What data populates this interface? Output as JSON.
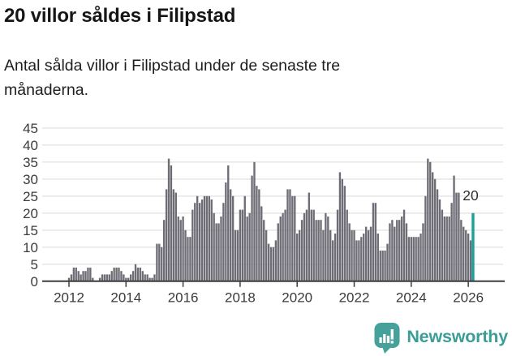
{
  "title": "20 villor såldes i Filipstad",
  "subtitle": "Antal sålda villor i Filipstad under de senaste tre månaderna.",
  "footer": {
    "brand": "Newsworthy",
    "logo_icon": "bar-chart-speech-bubble-icon"
  },
  "colors": {
    "bar": "#6e6d76",
    "highlight": "#1d9f9a",
    "grid": "#e8e8e8",
    "axis": "#3d3d3d",
    "tick_text": "#3b3b3b",
    "annotation_text": "#2e2e2e",
    "brand": "#3b9d96",
    "logo_fill": "#46a19a"
  },
  "chart_data": {
    "type": "bar",
    "title": "20 villor såldes i Filipstad",
    "ylabel": "",
    "xlabel": "",
    "ylim": [
      0,
      45
    ],
    "grid": true,
    "y_ticks": [
      0,
      5,
      10,
      15,
      20,
      25,
      30,
      35,
      40,
      45
    ],
    "x_tick_labels": [
      "2012",
      "2014",
      "2016",
      "2018",
      "2020",
      "2022",
      "2024",
      "2026"
    ],
    "x_start_month": "2012-01",
    "series": [
      {
        "year": 2012,
        "monthly": [
          1,
          2,
          4,
          4,
          3,
          2,
          3,
          3,
          4,
          4,
          1,
          0
        ]
      },
      {
        "year": 2013,
        "monthly": [
          0,
          1,
          2,
          2,
          2,
          2,
          3,
          4,
          4,
          4,
          3,
          2
        ]
      },
      {
        "year": 2014,
        "monthly": [
          1,
          1,
          2,
          3,
          5,
          4,
          4,
          3,
          2,
          2,
          1,
          1
        ]
      },
      {
        "year": 2015,
        "monthly": [
          2,
          11,
          11,
          10,
          18,
          27,
          36,
          34,
          27,
          26,
          19,
          18
        ]
      },
      {
        "year": 2016,
        "monthly": [
          19,
          15,
          13,
          13,
          21,
          23,
          25,
          23,
          24,
          25,
          25,
          25
        ]
      },
      {
        "year": 2017,
        "monthly": [
          24,
          20,
          17,
          17,
          19,
          23,
          29,
          34,
          27,
          25,
          15,
          15
        ]
      },
      {
        "year": 2018,
        "monthly": [
          21,
          21,
          25,
          19,
          20,
          31,
          35,
          28,
          27,
          22,
          18,
          15
        ]
      },
      {
        "year": 2019,
        "monthly": [
          11,
          10,
          10,
          12,
          17,
          19,
          20,
          21,
          27,
          27,
          25,
          25
        ]
      },
      {
        "year": 2020,
        "monthly": [
          14,
          15,
          18,
          20,
          21,
          26,
          21,
          21,
          18,
          18,
          18,
          15
        ]
      },
      {
        "year": 2021,
        "monthly": [
          20,
          19,
          15,
          12,
          14,
          21,
          32,
          30,
          28,
          21,
          17,
          15
        ]
      },
      {
        "year": 2022,
        "monthly": [
          15,
          12,
          12,
          13,
          14,
          16,
          15,
          16,
          23,
          23,
          14,
          9
        ]
      },
      {
        "year": 2023,
        "monthly": [
          9,
          9,
          11,
          17,
          18,
          16,
          18,
          18,
          19,
          21,
          17,
          13
        ]
      },
      {
        "year": 2024,
        "monthly": [
          13,
          13,
          13,
          13,
          14,
          17,
          25,
          36,
          35,
          32,
          30,
          27
        ]
      },
      {
        "year": 2025,
        "monthly": [
          24,
          21,
          19,
          19,
          19,
          23,
          31,
          26,
          26,
          18,
          16,
          15
        ]
      },
      {
        "year": 2026,
        "monthly": [
          14,
          12,
          20
        ]
      }
    ],
    "highlight_last_bar": true,
    "last_value_label": "20",
    "legend": null
  }
}
